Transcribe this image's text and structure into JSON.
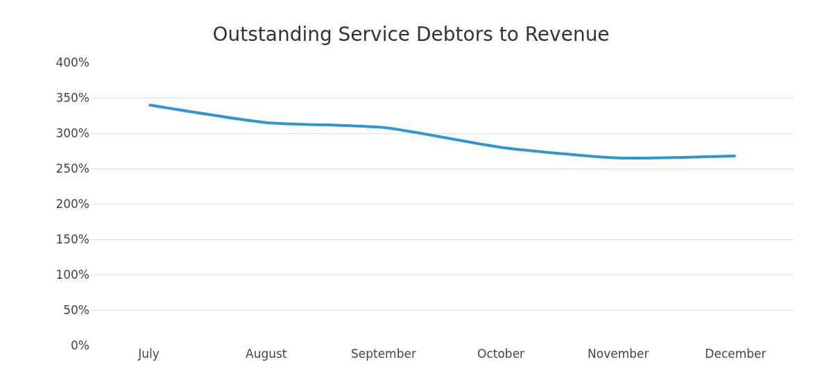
{
  "chart_data": {
    "type": "line",
    "title": "Outstanding Service Debtors to Revenue",
    "categories": [
      "July",
      "August",
      "September",
      "October",
      "November",
      "December"
    ],
    "series": [
      {
        "color": "#2e96d0",
        "values": [
          340,
          315,
          308,
          280,
          265,
          268
        ]
      }
    ],
    "ylim": [
      0,
      400
    ],
    "yticks": [
      {
        "value": 0,
        "label": "0%"
      },
      {
        "value": 50,
        "label": "50%"
      },
      {
        "value": 100,
        "label": "100%"
      },
      {
        "value": 150,
        "label": "150%"
      },
      {
        "value": 200,
        "label": "200%"
      },
      {
        "value": 250,
        "label": "250%"
      },
      {
        "value": 300,
        "label": "300%"
      },
      {
        "value": 350,
        "label": "350%"
      },
      {
        "value": 400,
        "label": "400%"
      }
    ],
    "grid": "y",
    "marker": "none",
    "line_style": "solid"
  }
}
